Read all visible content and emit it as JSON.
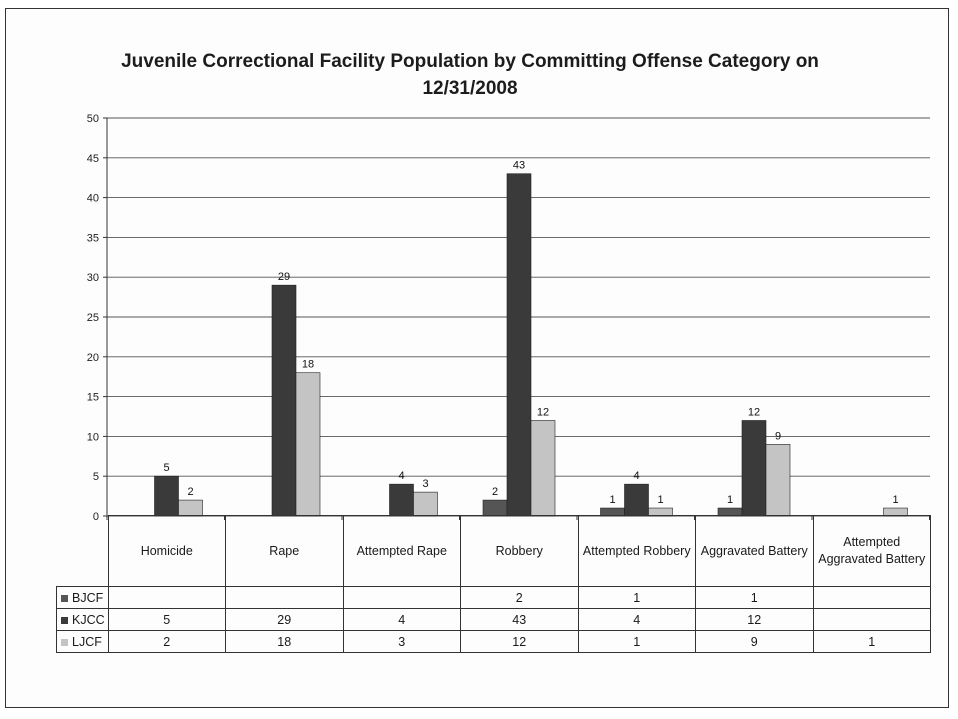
{
  "chart_data": {
    "type": "bar",
    "title": "Juvenile Correctional Facility Population by Committing Offense Category on 12/31/2008",
    "categories": [
      "Homicide",
      "Rape",
      "Attempted Rape",
      "Robbery",
      "Attempted Robbery",
      "Aggravated Battery",
      "Attempted Aggravated Battery"
    ],
    "series": [
      {
        "name": "BJCF",
        "color": "#555555",
        "values": [
          null,
          null,
          null,
          2,
          1,
          1,
          null
        ]
      },
      {
        "name": "KJCC",
        "color": "#3a3a3a",
        "values": [
          5,
          29,
          4,
          43,
          4,
          12,
          null
        ]
      },
      {
        "name": "LJCF",
        "color": "#c4c4c4",
        "values": [
          2,
          18,
          3,
          12,
          1,
          9,
          1
        ]
      }
    ],
    "ylim": [
      0,
      50
    ],
    "yticks": [
      0,
      5,
      10,
      15,
      20,
      25,
      30,
      35,
      40,
      45,
      50
    ],
    "grid": true,
    "legend": "data-table-below"
  }
}
